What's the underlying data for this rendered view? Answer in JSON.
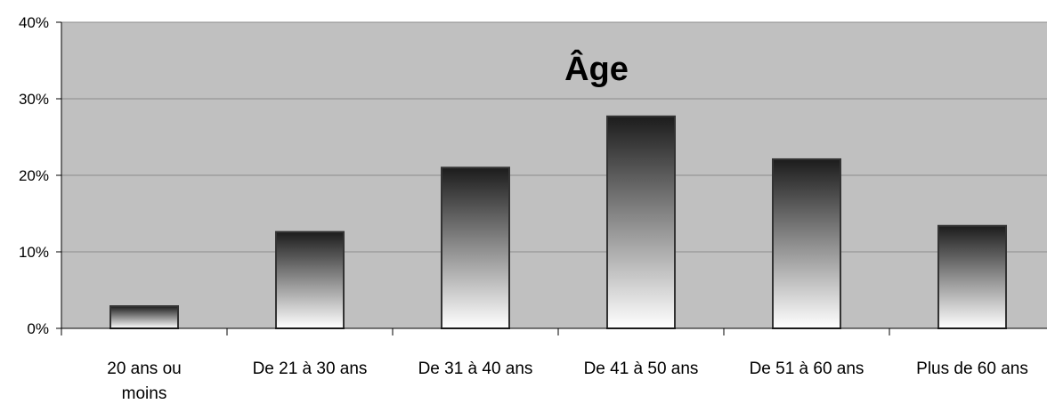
{
  "chart_data": {
    "type": "bar",
    "title": "Âge",
    "categories": [
      "20 ans ou moins",
      "De 21 à 30 ans",
      "De 31 à 40 ans",
      "De 41 à 50 ans",
      "De 51 à 60 ans",
      "Plus de 60 ans"
    ],
    "category_lines": [
      [
        "20 ans ou",
        "moins"
      ],
      [
        "De 21 à 30 ans"
      ],
      [
        "De 31 à 40 ans"
      ],
      [
        "De 41 à 50 ans"
      ],
      [
        "De 51 à 60 ans"
      ],
      [
        "Plus de 60 ans"
      ]
    ],
    "values": [
      2.9,
      12.6,
      21.0,
      27.7,
      22.1,
      13.4
    ],
    "ylim": [
      0,
      40
    ],
    "yticks": [
      0,
      10,
      20,
      30,
      40
    ],
    "ytick_labels": [
      "0%",
      "10%",
      "20%",
      "30%",
      "40%"
    ],
    "xlabel": "",
    "ylabel": "",
    "grid": true,
    "legend": "none",
    "colors": {
      "plot_background": "#c0c0c0",
      "gridline": "#8c8c8c",
      "bar_top": "#1c1c1c",
      "bar_bottom": "#ffffff",
      "bar_outline": "#333333"
    }
  }
}
